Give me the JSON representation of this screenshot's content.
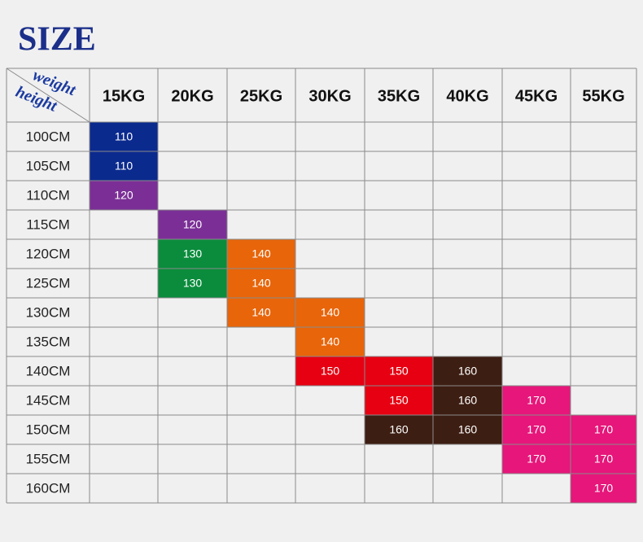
{
  "title": "SIZE",
  "header": {
    "corner_top": "weight",
    "corner_bottom": "height",
    "columns": [
      "15KG",
      "20KG",
      "25KG",
      "30KG",
      "35KG",
      "40KG",
      "45KG",
      "55KG"
    ]
  },
  "table": {
    "rows": [
      {
        "height": "100CM",
        "cells": [
          {
            "text": "110",
            "color": "#0b2a8e"
          },
          null,
          null,
          null,
          null,
          null,
          null,
          null
        ]
      },
      {
        "height": "105CM",
        "cells": [
          {
            "text": "110",
            "color": "#0b2a8e"
          },
          null,
          null,
          null,
          null,
          null,
          null,
          null
        ]
      },
      {
        "height": "110CM",
        "cells": [
          {
            "text": "120",
            "color": "#7b2f96"
          },
          null,
          null,
          null,
          null,
          null,
          null,
          null
        ]
      },
      {
        "height": "115CM",
        "cells": [
          null,
          {
            "text": "120",
            "color": "#7b2f96"
          },
          null,
          null,
          null,
          null,
          null,
          null
        ]
      },
      {
        "height": "120CM",
        "cells": [
          null,
          {
            "text": "130",
            "color": "#0a8c3c"
          },
          {
            "text": "140",
            "color": "#e8650a"
          },
          null,
          null,
          null,
          null,
          null
        ]
      },
      {
        "height": "125CM",
        "cells": [
          null,
          {
            "text": "130",
            "color": "#0a8c3c"
          },
          {
            "text": "140",
            "color": "#e8650a"
          },
          null,
          null,
          null,
          null,
          null
        ]
      },
      {
        "height": "130CM",
        "cells": [
          null,
          null,
          {
            "text": "140",
            "color": "#e8650a"
          },
          {
            "text": "140",
            "color": "#e8650a"
          },
          null,
          null,
          null,
          null
        ]
      },
      {
        "height": "135CM",
        "cells": [
          null,
          null,
          null,
          {
            "text": "140",
            "color": "#e8650a"
          },
          null,
          null,
          null,
          null
        ]
      },
      {
        "height": "140CM",
        "cells": [
          null,
          null,
          null,
          {
            "text": "150",
            "color": "#e60012"
          },
          {
            "text": "150",
            "color": "#e60012"
          },
          {
            "text": "160",
            "color": "#3d1e12"
          },
          null,
          null
        ]
      },
      {
        "height": "145CM",
        "cells": [
          null,
          null,
          null,
          null,
          {
            "text": "150",
            "color": "#e60012"
          },
          {
            "text": "160",
            "color": "#3d1e12"
          },
          {
            "text": "170",
            "color": "#e6167a"
          },
          null
        ]
      },
      {
        "height": "150CM",
        "cells": [
          null,
          null,
          null,
          null,
          {
            "text": "160",
            "color": "#3d1e12"
          },
          {
            "text": "160",
            "color": "#3d1e12"
          },
          {
            "text": "170",
            "color": "#e6167a"
          },
          {
            "text": "170",
            "color": "#e6167a"
          }
        ]
      },
      {
        "height": "155CM",
        "cells": [
          null,
          null,
          null,
          null,
          null,
          null,
          {
            "text": "170",
            "color": "#e6167a"
          },
          {
            "text": "170",
            "color": "#e6167a"
          }
        ]
      },
      {
        "height": "160CM",
        "cells": [
          null,
          null,
          null,
          null,
          null,
          null,
          null,
          {
            "text": "170",
            "color": "#e6167a"
          }
        ]
      }
    ]
  }
}
